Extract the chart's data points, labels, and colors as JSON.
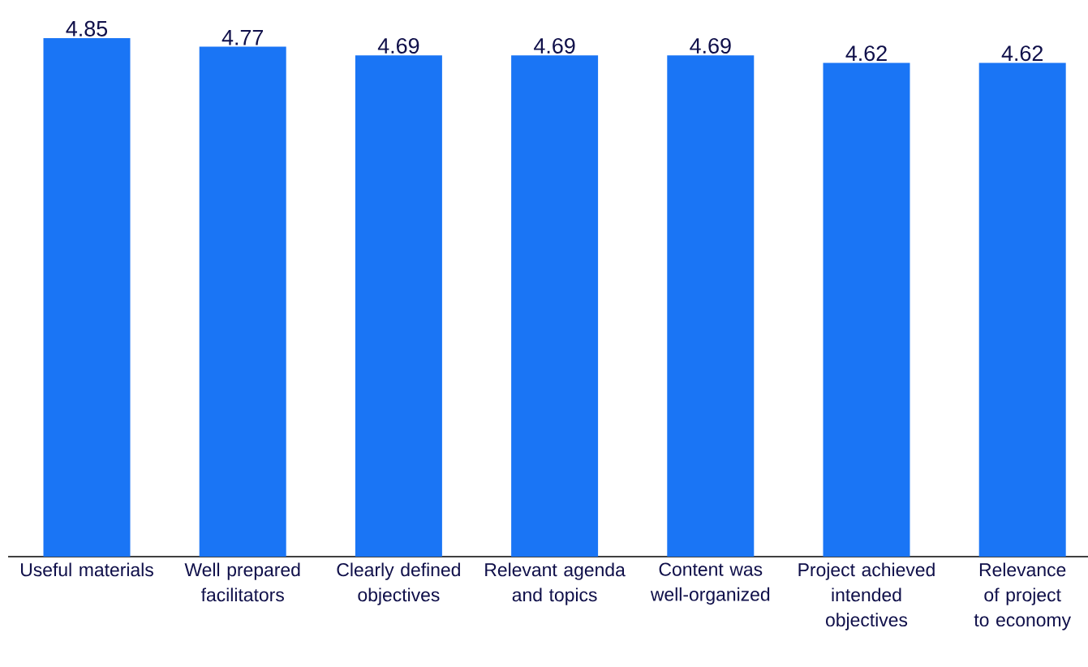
{
  "chart_data": {
    "type": "bar",
    "categories": [
      "Useful materials",
      "Well prepared facilitators",
      "Clearly defined objectives",
      "Relevant agenda and topics",
      "Content was well-organized",
      "Project achieved intended objectives",
      "Relevance of project to economy"
    ],
    "values": [
      4.85,
      4.77,
      4.69,
      4.69,
      4.69,
      4.62,
      4.62
    ],
    "color": "#1a75f5",
    "data_labels": true
  }
}
